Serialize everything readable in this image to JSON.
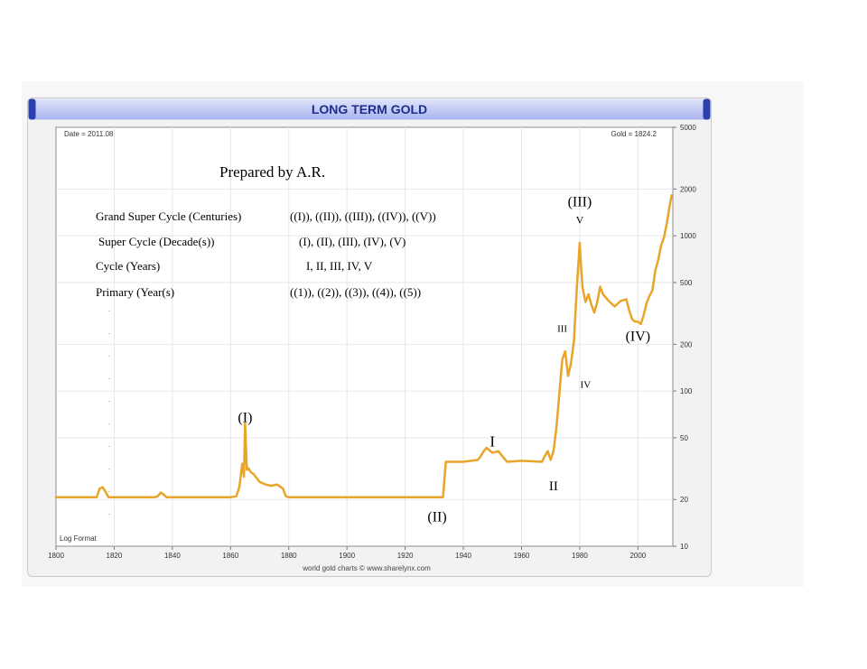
{
  "chart_data": {
    "type": "line",
    "title": "LONG TERM GOLD",
    "date_label": "Date = 2011.08",
    "value_label": "Gold = 1824.2",
    "scale_label": "Log Format",
    "credit": "world gold charts © www.sharelynx.com",
    "log_scale": true,
    "xlim": [
      1800,
      2012
    ],
    "ylim": [
      10,
      5000
    ],
    "x_ticks": [
      "1800",
      "1820",
      "1840",
      "1860",
      "1880",
      "1900",
      "1920",
      "1940",
      "1960",
      "1980",
      "2000"
    ],
    "y_ticks": [
      "10",
      "20",
      "50",
      "100",
      "200",
      "500",
      "1000",
      "2000",
      "5000"
    ],
    "grid": true,
    "line_color": "#e8a52a",
    "title_color": "#1e2e8c",
    "series": [
      {
        "x": [
          1800,
          1814,
          1815,
          1816,
          1817,
          1818,
          1834,
          1835,
          1836,
          1837,
          1838,
          1839,
          1860,
          1862,
          1863,
          1864,
          1864.6,
          1865,
          1865.6,
          1866,
          1867,
          1868,
          1870,
          1872,
          1874,
          1876,
          1878,
          1879,
          1880,
          1900,
          1933,
          1934,
          1940,
          1945,
          1946,
          1947,
          1948,
          1950,
          1952,
          1955,
          1960,
          1967,
          1968,
          1969,
          1970,
          1971,
          1972,
          1973,
          1974,
          1975,
          1976,
          1977,
          1978,
          1979,
          1980,
          1980.5,
          1981,
          1982,
          1983,
          1984,
          1985,
          1986,
          1987,
          1988,
          1990,
          1992,
          1994,
          1996,
          1997,
          1998,
          1999,
          2000,
          2001,
          2002,
          2003,
          2004,
          2005,
          2006,
          2007,
          2008,
          2009,
          2010,
          2011,
          2011.6
        ],
        "y": [
          20.7,
          20.7,
          23.5,
          24,
          22.5,
          20.7,
          20.7,
          21,
          22.2,
          21.5,
          20.7,
          20.7,
          20.7,
          21,
          24,
          34,
          28,
          62,
          31,
          32,
          30,
          29,
          26,
          25,
          24.5,
          25,
          23.5,
          21,
          20.7,
          20.7,
          20.7,
          35,
          35,
          36,
          38,
          41,
          43,
          40,
          41,
          35,
          35.5,
          35,
          38,
          41,
          36,
          41,
          58,
          97,
          160,
          180,
          125,
          150,
          210,
          460,
          900,
          615,
          460,
          375,
          420,
          360,
          320,
          370,
          470,
          420,
          380,
          350,
          380,
          390,
          330,
          290,
          280,
          280,
          270,
          310,
          370,
          410,
          445,
          600,
          700,
          870,
          980,
          1225,
          1600,
          1824.2
        ]
      }
    ],
    "annotations": [
      {
        "text": "Prepared by A.R."
      },
      {
        "text": "Grand Super Cycle (Centuries)"
      },
      {
        "text": "((I)), ((II)), ((III)), ((IV)), ((V))"
      },
      {
        "text": "Super Cycle (Decade(s))"
      },
      {
        "text": "(I), (II), (III), (IV), (V)"
      },
      {
        "text": "Cycle (Years)"
      },
      {
        "text": "I,  II,  III,  IV, V"
      },
      {
        "text": "Primary (Year(s)"
      },
      {
        "text": "((1)), ((2)), ((3)), ((4)), ((5))"
      },
      {
        "text": "(I)",
        "x": 1865,
        "y": 63
      },
      {
        "text": "(II)",
        "x": 1931,
        "y": 14.5
      },
      {
        "text": "I",
        "x": 1950,
        "y": 44
      },
      {
        "text": "II",
        "x": 1971,
        "y": 23
      },
      {
        "text": "III",
        "x": 1974,
        "y": 240
      },
      {
        "text": "IV",
        "x": 1982,
        "y": 105
      },
      {
        "text": "V",
        "x": 1980,
        "y": 1200
      },
      {
        "text": "(III)",
        "x": 1980,
        "y": 1550
      },
      {
        "text": "(IV)",
        "x": 2000,
        "y": 210
      }
    ]
  }
}
